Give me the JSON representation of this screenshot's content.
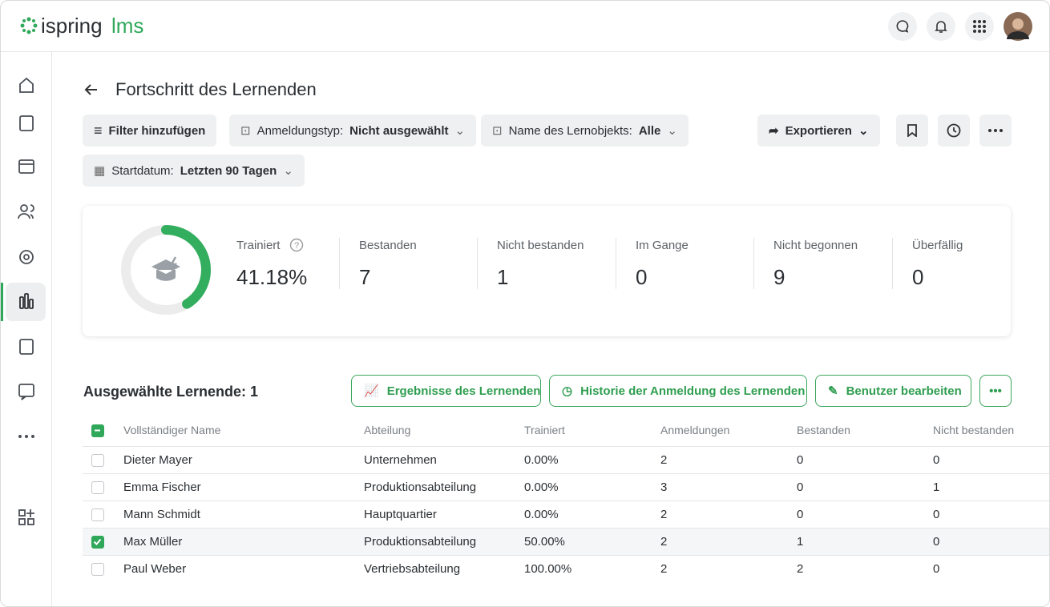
{
  "logo": {
    "brand": "ispring",
    "product": "lms"
  },
  "page": {
    "title": "Fortschritt des Lernenden"
  },
  "filters": {
    "add": "Filter hinzufügen",
    "items": [
      {
        "label": "Anmeldungstyp:",
        "value": "Nicht ausgewählt"
      },
      {
        "label": "Name des Lernobjekts:",
        "value": "Alle"
      },
      {
        "label": "Startdatum:",
        "value": "Letzten 90 Tagen"
      }
    ]
  },
  "actions": {
    "export": "Exportieren"
  },
  "summary": {
    "trained": {
      "label": "Trainiert",
      "value": 41.18,
      "value_label": "41.18%"
    },
    "stats": [
      {
        "label": "Bestanden",
        "value": 7
      },
      {
        "label": "Nicht bestanden",
        "value": 1
      },
      {
        "label": "Im Gange",
        "value": 0
      },
      {
        "label": "Nicht begonnen",
        "value": 9
      },
      {
        "label": "Überfällig",
        "value": 0
      }
    ]
  },
  "selection": {
    "heading": "Ausgewählte Lernende: 1",
    "buttons": [
      "Ergebnisse des Lernenden",
      "Historie der Anmeldung des Lernenden",
      "Benutzer bearbeiten"
    ]
  },
  "table": {
    "columns": [
      "Vollständiger Name",
      "Abteilung",
      "Trainiert",
      "Anmeldungen",
      "Bestanden",
      "Nicht bestanden"
    ],
    "rows": [
      {
        "selected": false,
        "cells": [
          "Dieter Mayer",
          "Unternehmen",
          "0.00%",
          2,
          0,
          0
        ]
      },
      {
        "selected": false,
        "cells": [
          "Emma Fischer",
          "Produktionsabteilung",
          "0.00%",
          3,
          0,
          1
        ]
      },
      {
        "selected": false,
        "cells": [
          "Mann Schmidt",
          "Hauptquartier",
          "0.00%",
          2,
          0,
          0
        ]
      },
      {
        "selected": true,
        "cells": [
          "Max Müller",
          "Produktionsabteilung",
          "50.00%",
          2,
          1,
          0
        ]
      },
      {
        "selected": false,
        "cells": [
          "Paul Weber",
          "Vertriebsabteilung",
          "100.00%",
          2,
          2,
          0
        ]
      }
    ]
  }
}
